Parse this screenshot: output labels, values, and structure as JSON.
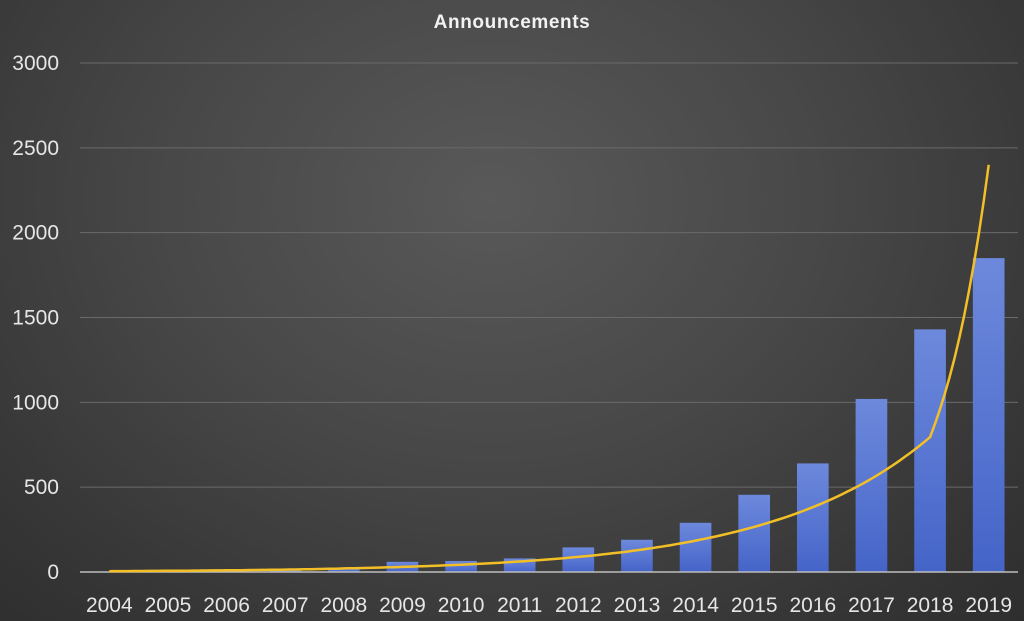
{
  "chart_data": {
    "type": "bar",
    "title": "Announcements",
    "xlabel": "",
    "ylabel": "",
    "categories": [
      "2004",
      "2005",
      "2006",
      "2007",
      "2008",
      "2009",
      "2010",
      "2011",
      "2012",
      "2013",
      "2014",
      "2015",
      "2016",
      "2017",
      "2018",
      "2019"
    ],
    "series": [
      {
        "type": "bar",
        "values": [
          3,
          6,
          6,
          10,
          25,
          60,
          65,
          80,
          145,
          190,
          290,
          455,
          640,
          1020,
          1430,
          1850
        ],
        "color": "#4f6fcf"
      },
      {
        "type": "line",
        "curve": "exponential-trend",
        "values": [
          5,
          7,
          10,
          14,
          21,
          30,
          43,
          62,
          89,
          128,
          185,
          266,
          382,
          550,
          795,
          2400
        ],
        "color": "#f2c026"
      }
    ],
    "ylim": [
      0,
      3000
    ],
    "yticks": [
      0,
      500,
      1000,
      1500,
      2000,
      2500,
      3000
    ],
    "grid": true,
    "legend": "none"
  }
}
